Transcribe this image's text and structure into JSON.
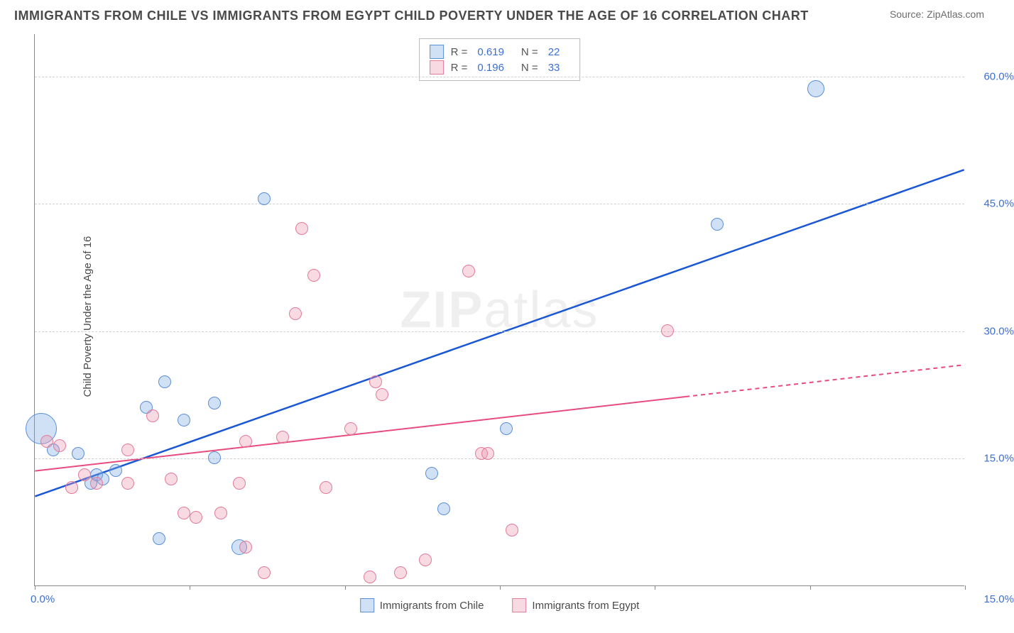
{
  "header": {
    "title": "IMMIGRANTS FROM CHILE VS IMMIGRANTS FROM EGYPT CHILD POVERTY UNDER THE AGE OF 16 CORRELATION CHART",
    "source": "Source: ZipAtlas.com"
  },
  "watermark": {
    "zip": "ZIP",
    "atlas": "atlas"
  },
  "chart": {
    "type": "scatter",
    "ylabel": "Child Poverty Under the Age of 16",
    "xlim": [
      0,
      15
    ],
    "ylim": [
      0,
      65
    ],
    "yticks": [
      15,
      30,
      45,
      60
    ],
    "ytick_labels": [
      "15.0%",
      "30.0%",
      "45.0%",
      "60.0%"
    ],
    "xticks": [
      0,
      2.5,
      5,
      7.5,
      10,
      12.5,
      15
    ],
    "xtick_left_label": "0.0%",
    "xtick_right_label": "15.0%",
    "grid_color": "#d0d0d0",
    "background_color": "#ffffff",
    "axis_color": "#888888",
    "label_color": "#3b6fd4",
    "point_radius": 9,
    "series": [
      {
        "name": "Immigrants from Chile",
        "fill": "rgba(120,170,230,0.35)",
        "stroke": "#5a8fd6",
        "trend_color": "#1957d4",
        "trend_width": 2.5,
        "R": "0.619",
        "N": "22",
        "trend": {
          "x1": 0,
          "y1": 10.5,
          "x2": 15,
          "y2": 49
        },
        "points": [
          {
            "x": 0.1,
            "y": 18.5,
            "r": 22
          },
          {
            "x": 0.3,
            "y": 16
          },
          {
            "x": 0.7,
            "y": 15.5
          },
          {
            "x": 0.9,
            "y": 12
          },
          {
            "x": 1.0,
            "y": 13
          },
          {
            "x": 1.1,
            "y": 12.5
          },
          {
            "x": 1.3,
            "y": 13.5
          },
          {
            "x": 1.8,
            "y": 21
          },
          {
            "x": 2.0,
            "y": 5.5
          },
          {
            "x": 2.1,
            "y": 24
          },
          {
            "x": 2.4,
            "y": 19.5
          },
          {
            "x": 2.9,
            "y": 15
          },
          {
            "x": 2.9,
            "y": 21.5
          },
          {
            "x": 3.3,
            "y": 4.5,
            "r": 11
          },
          {
            "x": 3.7,
            "y": 45.5
          },
          {
            "x": 6.4,
            "y": 13.2
          },
          {
            "x": 6.6,
            "y": 9
          },
          {
            "x": 7.6,
            "y": 18.5
          },
          {
            "x": 11.0,
            "y": 42.5
          },
          {
            "x": 12.6,
            "y": 58.5,
            "r": 12
          }
        ]
      },
      {
        "name": "Immigrants from Egypt",
        "fill": "rgba(235,150,175,0.35)",
        "stroke": "#e27a9a",
        "trend_color": "#e84b7d",
        "trend_width": 2,
        "trend_dash_after": 10.5,
        "R": "0.196",
        "N": "33",
        "trend": {
          "x1": 0,
          "y1": 13.5,
          "x2": 15,
          "y2": 26
        },
        "points": [
          {
            "x": 0.2,
            "y": 17
          },
          {
            "x": 0.4,
            "y": 16.5
          },
          {
            "x": 0.6,
            "y": 11.5
          },
          {
            "x": 0.8,
            "y": 13
          },
          {
            "x": 1.0,
            "y": 12
          },
          {
            "x": 1.5,
            "y": 12
          },
          {
            "x": 1.5,
            "y": 16
          },
          {
            "x": 1.9,
            "y": 20
          },
          {
            "x": 2.2,
            "y": 12.5
          },
          {
            "x": 2.4,
            "y": 8.5
          },
          {
            "x": 2.6,
            "y": 8
          },
          {
            "x": 3.0,
            "y": 8.5
          },
          {
            "x": 3.3,
            "y": 12
          },
          {
            "x": 3.4,
            "y": 4.5
          },
          {
            "x": 3.4,
            "y": 17
          },
          {
            "x": 3.7,
            "y": 1.5
          },
          {
            "x": 4.0,
            "y": 17.5
          },
          {
            "x": 4.2,
            "y": 32
          },
          {
            "x": 4.3,
            "y": 42
          },
          {
            "x": 4.5,
            "y": 36.5
          },
          {
            "x": 4.7,
            "y": 11.5
          },
          {
            "x": 5.1,
            "y": 18.5
          },
          {
            "x": 5.4,
            "y": 1
          },
          {
            "x": 5.5,
            "y": 24
          },
          {
            "x": 5.6,
            "y": 22.5
          },
          {
            "x": 5.9,
            "y": 1.5
          },
          {
            "x": 6.3,
            "y": 3
          },
          {
            "x": 7.0,
            "y": 37
          },
          {
            "x": 7.2,
            "y": 15.5
          },
          {
            "x": 7.3,
            "y": 15.5
          },
          {
            "x": 7.7,
            "y": 6.5
          },
          {
            "x": 10.2,
            "y": 30
          }
        ]
      }
    ]
  }
}
